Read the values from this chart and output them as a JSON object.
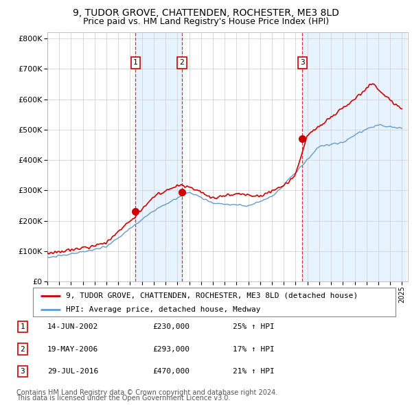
{
  "title": "9, TUDOR GROVE, CHATTENDEN, ROCHESTER, ME3 8LD",
  "subtitle": "Price paid vs. HM Land Registry's House Price Index (HPI)",
  "legend_line1": "9, TUDOR GROVE, CHATTENDEN, ROCHESTER, ME3 8LD (detached house)",
  "legend_line2": "HPI: Average price, detached house, Medway",
  "footnote1": "Contains HM Land Registry data © Crown copyright and database right 2024.",
  "footnote2": "This data is licensed under the Open Government Licence v3.0.",
  "transactions": [
    {
      "label": "1",
      "date": "14-JUN-2002",
      "price": "£230,000",
      "hpi_pct": "25% ↑ HPI"
    },
    {
      "label": "2",
      "date": "19-MAY-2006",
      "price": "£293,000",
      "hpi_pct": "17% ↑ HPI"
    },
    {
      "label": "3",
      "date": "29-JUL-2016",
      "price": "£470,000",
      "hpi_pct": "21% ↑ HPI"
    }
  ],
  "transaction_years": [
    2002.45,
    2006.38,
    2016.57
  ],
  "transaction_prices": [
    230000,
    293000,
    470000
  ],
  "ylim": [
    0,
    820000
  ],
  "yticks": [
    0,
    100000,
    200000,
    300000,
    400000,
    500000,
    600000,
    700000,
    800000
  ],
  "property_color": "#cc0000",
  "hpi_color": "#6699cc",
  "shade_color": "#ddeeff",
  "vline_color": "#cc0000",
  "background_color": "#ffffff",
  "grid_color": "#cccccc",
  "title_fontsize": 10,
  "subtitle_fontsize": 9,
  "axis_fontsize": 8,
  "footnote_fontsize": 7
}
